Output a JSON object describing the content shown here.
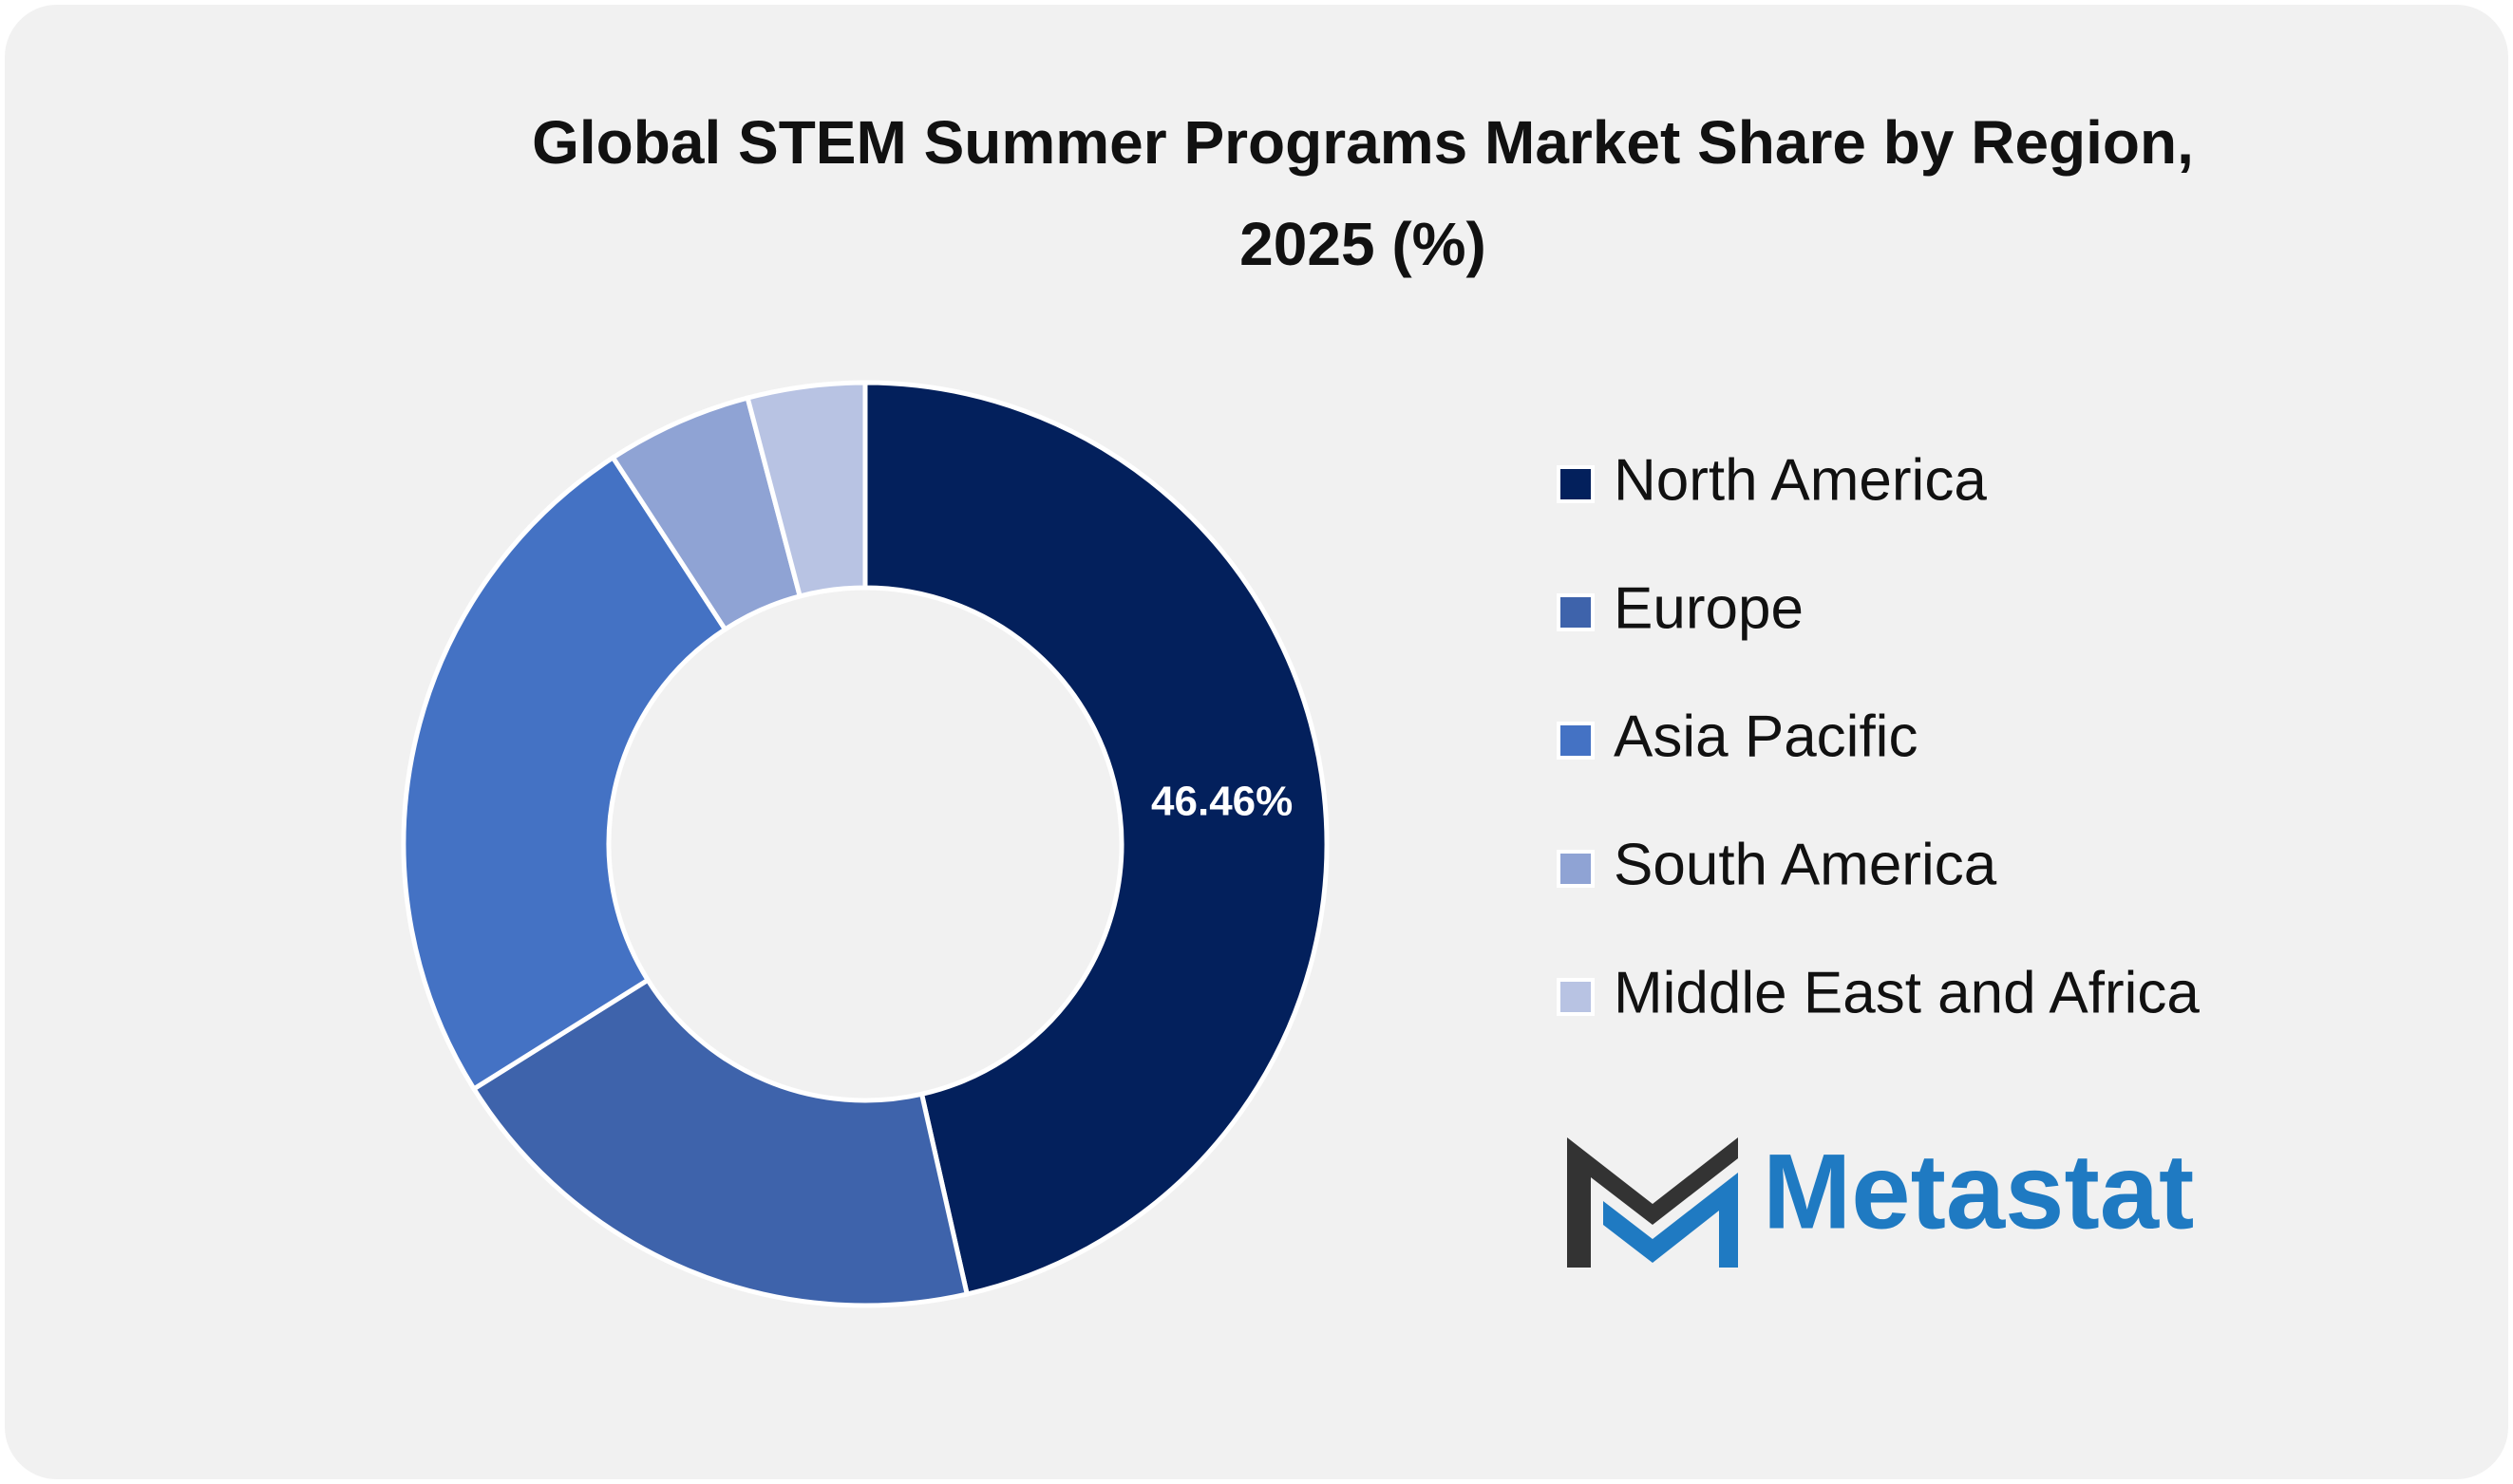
{
  "chart_data": {
    "type": "donut",
    "title": "Global STEM Summer Programs Market Share by Region,",
    "subtitle": "2025 (%)",
    "categories": [
      "North America",
      "Europe",
      "Asia Pacific",
      "South America",
      "Middle East and Africa"
    ],
    "values": [
      46.46,
      19.64,
      24.7,
      5.1,
      4.1
    ],
    "value_labels": [
      "46.46%",
      null,
      null,
      null,
      null
    ],
    "colors": [
      "#03205c",
      "#3e63ab",
      "#4472c4",
      "#8fa3d4",
      "#b8c3e3"
    ],
    "legend": "right",
    "brand": "Metastat"
  }
}
